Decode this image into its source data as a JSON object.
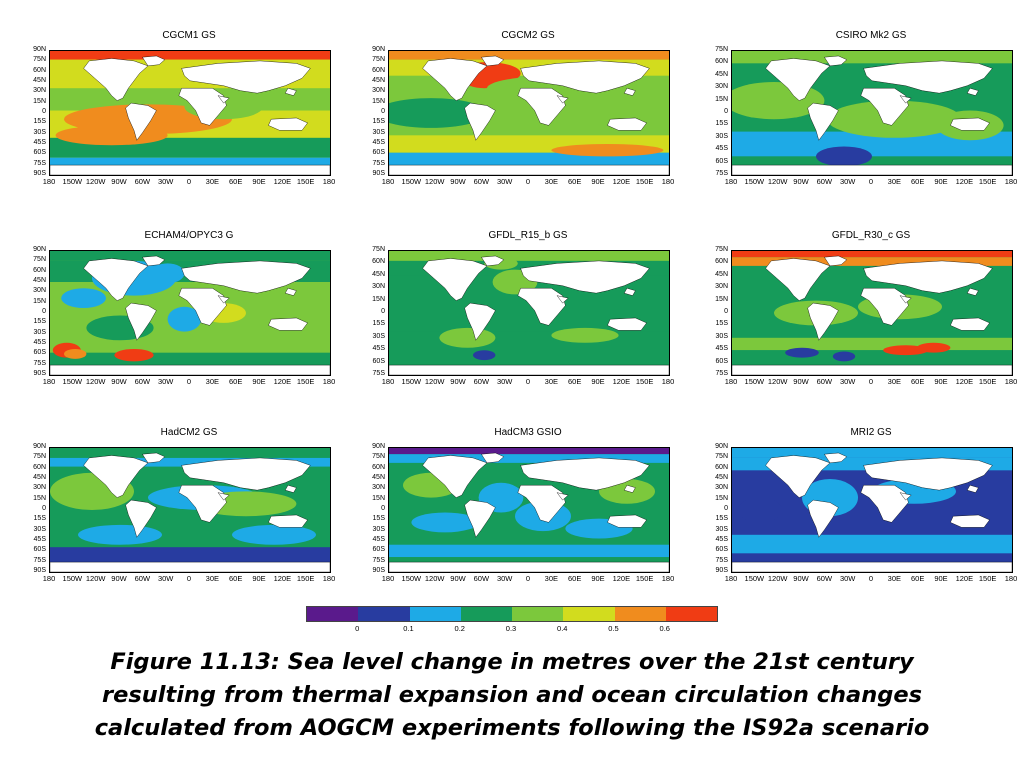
{
  "colors": {
    "scale": [
      "#5a1a8c",
      "#283ca0",
      "#1eaae6",
      "#169b5a",
      "#7cc83c",
      "#d2dc1e",
      "#f08c1e",
      "#f03c14"
    ],
    "ocean_default": "#169b5a",
    "land": "#ffffff",
    "coast": "#000000"
  },
  "lat_labels_full": [
    "90N",
    "75N",
    "60N",
    "45N",
    "30N",
    "15N",
    "0",
    "15S",
    "30S",
    "45S",
    "60S",
    "75S",
    "90S"
  ],
  "lat_labels_short": [
    "75N",
    "60N",
    "45N",
    "30N",
    "15N",
    "0",
    "15S",
    "30S",
    "45S",
    "60S",
    "75S"
  ],
  "lon_labels": [
    "180",
    "150W",
    "120W",
    "90W",
    "60W",
    "30W",
    "0",
    "30E",
    "60E",
    "90E",
    "120E",
    "150E",
    "180"
  ],
  "panels": [
    {
      "title": "CGCM1 GS",
      "lat_type": "full",
      "base": 5,
      "bands": [
        [
          0,
          7,
          7
        ],
        [
          7,
          30,
          5
        ],
        [
          30,
          48,
          4
        ],
        [
          70,
          86,
          3
        ],
        [
          86,
          100,
          2
        ]
      ],
      "blobs": [
        [
          35,
          55,
          30,
          12,
          6
        ],
        [
          62,
          45,
          14,
          10,
          4
        ],
        [
          22,
          68,
          20,
          8,
          6
        ]
      ]
    },
    {
      "title": "CGCM2 GS",
      "lat_type": "full",
      "base": 4,
      "bands": [
        [
          0,
          7,
          6
        ],
        [
          7,
          20,
          5
        ],
        [
          20,
          60,
          4
        ],
        [
          68,
          82,
          5
        ],
        [
          82,
          100,
          2
        ]
      ],
      "blobs": [
        [
          35,
          18,
          12,
          9,
          7
        ],
        [
          34,
          24,
          7,
          6,
          7
        ],
        [
          78,
          80,
          20,
          5,
          6
        ],
        [
          15,
          50,
          20,
          12,
          3
        ],
        [
          60,
          30,
          25,
          10,
          4
        ]
      ]
    },
    {
      "title": "CSIRO Mk2 GS",
      "lat_type": "short",
      "base": 3,
      "bands": [
        [
          0,
          10,
          4
        ],
        [
          10,
          30,
          3
        ],
        [
          65,
          85,
          2
        ],
        [
          85,
          100,
          3
        ]
      ],
      "blobs": [
        [
          15,
          40,
          18,
          15,
          4
        ],
        [
          58,
          55,
          24,
          15,
          4
        ],
        [
          85,
          60,
          12,
          12,
          4
        ],
        [
          40,
          85,
          10,
          8,
          1
        ]
      ]
    },
    {
      "title": "ECHAM4/OPYC3 G",
      "lat_type": "full",
      "base": 4,
      "bands": [
        [
          0,
          8,
          3
        ],
        [
          8,
          25,
          3
        ],
        [
          82,
          100,
          3
        ]
      ],
      "blobs": [
        [
          30,
          22,
          15,
          14,
          2
        ],
        [
          42,
          18,
          6,
          8,
          2
        ],
        [
          6,
          80,
          5,
          6,
          7
        ],
        [
          9,
          83,
          4,
          4,
          6
        ],
        [
          30,
          84,
          7,
          5,
          7
        ],
        [
          12,
          38,
          8,
          8,
          2
        ],
        [
          48,
          55,
          6,
          10,
          2
        ],
        [
          62,
          50,
          8,
          8,
          5
        ],
        [
          25,
          62,
          12,
          10,
          3
        ]
      ]
    },
    {
      "title": "GFDL_R15_b GS",
      "lat_type": "short",
      "base": 3,
      "bands": [
        [
          0,
          8,
          4
        ],
        [
          8,
          20,
          3
        ],
        [
          65,
          88,
          3
        ],
        [
          88,
          100,
          3
        ]
      ],
      "blobs": [
        [
          45,
          25,
          8,
          10,
          4
        ],
        [
          40,
          10,
          6,
          5,
          4
        ],
        [
          34,
          84,
          4,
          4,
          1
        ],
        [
          28,
          70,
          10,
          8,
          4
        ],
        [
          70,
          68,
          12,
          6,
          4
        ]
      ]
    },
    {
      "title": "GFDL_R30_c GS",
      "lat_type": "short",
      "base": 3,
      "bands": [
        [
          0,
          5,
          7
        ],
        [
          5,
          12,
          6
        ],
        [
          70,
          80,
          4
        ],
        [
          80,
          100,
          3
        ]
      ],
      "blobs": [
        [
          25,
          82,
          6,
          4,
          1
        ],
        [
          40,
          85,
          4,
          4,
          1
        ],
        [
          62,
          80,
          8,
          4,
          7
        ],
        [
          72,
          78,
          6,
          4,
          7
        ],
        [
          30,
          50,
          15,
          10,
          4
        ],
        [
          60,
          45,
          15,
          10,
          4
        ]
      ]
    },
    {
      "title": "HadCM2 GS",
      "lat_type": "full",
      "base": 3,
      "bands": [
        [
          0,
          8,
          3
        ],
        [
          8,
          15,
          2
        ],
        [
          80,
          95,
          1
        ],
        [
          95,
          100,
          3
        ]
      ],
      "blobs": [
        [
          15,
          35,
          15,
          15,
          4
        ],
        [
          55,
          40,
          20,
          10,
          2
        ],
        [
          70,
          45,
          18,
          10,
          4
        ],
        [
          25,
          70,
          15,
          8,
          2
        ],
        [
          80,
          70,
          15,
          8,
          2
        ]
      ]
    },
    {
      "title": "HadCM3 GSIO",
      "lat_type": "full",
      "base": 3,
      "bands": [
        [
          0,
          5,
          0
        ],
        [
          5,
          12,
          2
        ],
        [
          78,
          88,
          2
        ],
        [
          88,
          100,
          3
        ]
      ],
      "blobs": [
        [
          40,
          40,
          8,
          12,
          2
        ],
        [
          55,
          55,
          10,
          12,
          2
        ],
        [
          20,
          60,
          12,
          8,
          2
        ],
        [
          75,
          65,
          12,
          8,
          2
        ],
        [
          15,
          30,
          10,
          10,
          4
        ],
        [
          85,
          35,
          10,
          10,
          4
        ]
      ]
    },
    {
      "title": "MRI2 GS",
      "lat_type": "full",
      "base": 1,
      "bands": [
        [
          0,
          8,
          2
        ],
        [
          8,
          18,
          2
        ],
        [
          70,
          85,
          2
        ],
        [
          85,
          100,
          1
        ]
      ],
      "blobs": [
        [
          35,
          40,
          10,
          15,
          2
        ],
        [
          65,
          35,
          15,
          10,
          2
        ],
        [
          10,
          50,
          8,
          10,
          1
        ]
      ]
    }
  ],
  "colorbar_labels": [
    "0",
    "0.1",
    "0.2",
    "0.3",
    "0.4",
    "0.5",
    "0.6"
  ],
  "caption": [
    "Figure 11.13: Sea level change in metres over the 21st century",
    "resulting from thermal expansion and ocean circulation changes",
    "calculated from AOGCM experiments following the IS92a scenario"
  ]
}
